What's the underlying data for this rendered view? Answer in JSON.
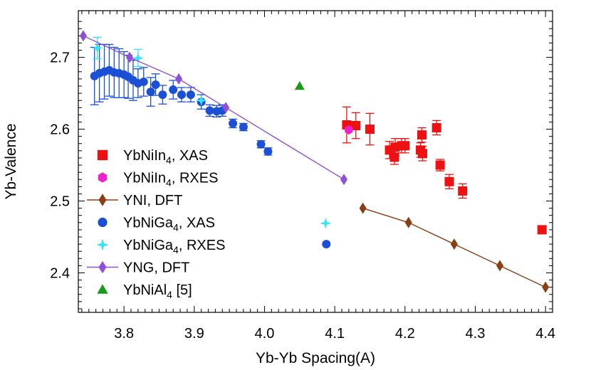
{
  "chart_data": {
    "type": "scatter",
    "xlabel": "Yb-Yb Spacing(A)",
    "ylabel": "Yb-Valence",
    "xlim": [
      3.735,
      4.41
    ],
    "ylim": [
      2.345,
      2.765
    ],
    "xticks": [
      3.8,
      3.9,
      4.0,
      4.1,
      4.2,
      4.3,
      4.4
    ],
    "xtick_labels": [
      "3.8",
      "3.9",
      "4.0",
      "4.1",
      "4.2",
      "4.3",
      "4.4"
    ],
    "yticks": [
      2.4,
      2.5,
      2.6,
      2.7
    ],
    "ytick_labels": [
      "2.4",
      "2.5",
      "2.6",
      "2.7"
    ],
    "grid": false,
    "legend_position": "left",
    "series": [
      {
        "name": "YbNiIn4, XAS",
        "legend_parts": [
          "YbNiIn",
          "4",
          ", XAS"
        ],
        "marker": "square",
        "color": "#ee1111",
        "line": false,
        "x": [
          4.117,
          4.13,
          4.15,
          4.178,
          4.185,
          4.186,
          4.195,
          4.2,
          4.222,
          4.225,
          4.224,
          4.245,
          4.25,
          4.263,
          4.282,
          4.395
        ],
        "y": [
          2.606,
          2.605,
          2.6,
          2.571,
          2.561,
          2.575,
          2.577,
          2.577,
          2.571,
          2.566,
          2.592,
          2.602,
          2.55,
          2.527,
          2.514,
          2.46
        ],
        "err": [
          0.025,
          0.018,
          0.022,
          0.012,
          0.01,
          0.012,
          0.01,
          0.01,
          0.01,
          0.01,
          0.01,
          0.01,
          0.008,
          0.01,
          0.01,
          0
        ]
      },
      {
        "name": "YbNiIn4, RXES",
        "legend_parts": [
          "YbNiIn",
          "4",
          ", RXES"
        ],
        "marker": "hexagon",
        "color": "#ee22cc",
        "line": false,
        "x": [
          4.12
        ],
        "y": [
          2.599
        ],
        "err": [
          0
        ]
      },
      {
        "name": "YNI, DFT",
        "legend_parts": [
          "YNI, DFT"
        ],
        "marker": "diamond",
        "color": "#8b3e12",
        "line": true,
        "x": [
          4.14,
          4.205,
          4.27,
          4.335,
          4.4
        ],
        "y": [
          2.49,
          2.47,
          2.44,
          2.41,
          2.38
        ],
        "err": []
      },
      {
        "name": "YbNiGa4, XAS",
        "legend_parts": [
          "YbNiGa",
          "4",
          ", XAS"
        ],
        "marker": "circle",
        "color": "#1a4fd6",
        "line": false,
        "x": [
          3.758,
          3.765,
          3.772,
          3.779,
          3.786,
          3.793,
          3.8,
          3.806,
          3.813,
          3.82,
          3.828,
          3.838,
          3.845,
          3.855,
          3.87,
          3.882,
          3.895,
          3.91,
          3.922,
          3.932,
          3.94,
          3.955,
          3.97,
          3.995,
          4.005,
          4.088
        ],
        "y": [
          2.674,
          2.678,
          2.68,
          2.682,
          2.679,
          2.678,
          2.676,
          2.673,
          2.668,
          2.664,
          2.666,
          2.652,
          2.662,
          2.648,
          2.655,
          2.648,
          2.648,
          2.638,
          2.626,
          2.625,
          2.626,
          2.608,
          2.603,
          2.579,
          2.569,
          2.44
        ],
        "err": [
          0.04,
          0.04,
          0.038,
          0.036,
          0.035,
          0.034,
          0.032,
          0.03,
          0.028,
          0.02,
          0.02,
          0.02,
          0.015,
          0.013,
          0.013,
          0.01,
          0.01,
          0.01,
          0.008,
          0.008,
          0.008,
          0.006,
          0.005,
          0.005,
          0.005,
          0
        ]
      },
      {
        "name": "YbNiGa4, RXES",
        "legend_parts": [
          "YbNiGa",
          "4",
          ", RXES"
        ],
        "marker": "star",
        "color": "#33e3ff",
        "line": false,
        "x": [
          3.762,
          3.82,
          3.91,
          4.087
        ],
        "y": [
          2.713,
          2.699,
          2.64,
          2.469
        ],
        "err": [
          0.015,
          0.012,
          0,
          0
        ]
      },
      {
        "name": "YNG, DFT",
        "legend_parts": [
          "YNG, DFT"
        ],
        "marker": "diamond",
        "color": "#8f4fd8",
        "line": true,
        "x": [
          3.742,
          3.808,
          3.878,
          3.945,
          4.113
        ],
        "y": [
          2.73,
          2.7,
          2.67,
          2.63,
          2.53
        ],
        "err": []
      },
      {
        "name": "YbNiAl4 [5]",
        "legend_parts": [
          "YbNiAl",
          "4",
          " [5]"
        ],
        "marker": "triangle",
        "color": "#1a9a1a",
        "line": false,
        "x": [
          4.05
        ],
        "y": [
          2.66
        ],
        "err": [
          0
        ]
      }
    ]
  }
}
